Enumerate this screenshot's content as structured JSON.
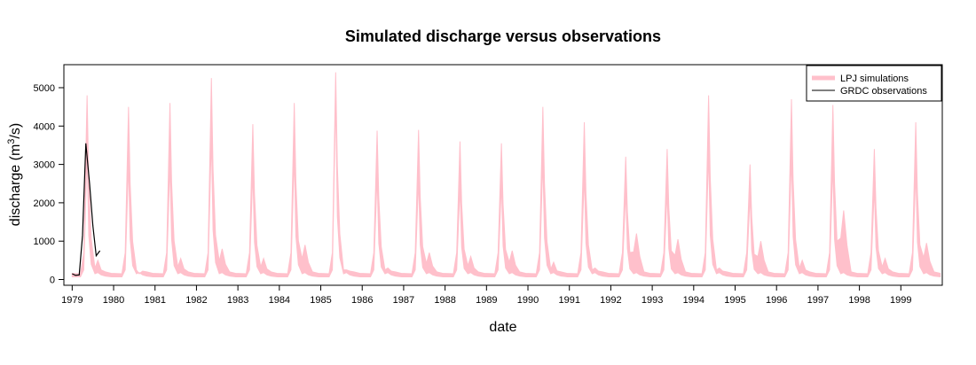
{
  "chart_data": {
    "type": "area",
    "title": "Simulated discharge versus observations",
    "xlabel": "date",
    "ylabel_prefix": "discharge (m",
    "ylabel_sup": "3",
    "ylabel_suffix": "/s)",
    "xlim": [
      1978.8,
      2000.0
    ],
    "ylim": [
      -150,
      5600
    ],
    "x_ticks": [
      1979,
      1980,
      1981,
      1982,
      1983,
      1984,
      1985,
      1986,
      1987,
      1988,
      1989,
      1990,
      1991,
      1992,
      1993,
      1994,
      1995,
      1996,
      1997,
      1998,
      1999
    ],
    "y_ticks": [
      0,
      1000,
      2000,
      3000,
      4000,
      5000
    ],
    "legend": {
      "position": "top-right",
      "entries": [
        {
          "label": "LPJ simulations",
          "color": "#FFC0CB",
          "style": "thick-line"
        },
        {
          "label": "GRDC observations",
          "color": "#000000",
          "style": "line"
        }
      ]
    },
    "series": [
      {
        "name": "LPJ simulations",
        "kind": "band",
        "color": "#FFC0CB",
        "annual_peaks": [
          {
            "year": 1979,
            "peak_upper": 4800,
            "peak_lower": 3300,
            "secondary": 500
          },
          {
            "year": 1980,
            "peak_upper": 4500,
            "peak_lower": 3000,
            "secondary": 150
          },
          {
            "year": 1981,
            "peak_upper": 4600,
            "peak_lower": 3000,
            "secondary": 550
          },
          {
            "year": 1982,
            "peak_upper": 5250,
            "peak_lower": 3700,
            "secondary": 800
          },
          {
            "year": 1983,
            "peak_upper": 4050,
            "peak_lower": 2800,
            "secondary": 550
          },
          {
            "year": 1984,
            "peak_upper": 4600,
            "peak_lower": 3200,
            "secondary": 900
          },
          {
            "year": 1985,
            "peak_upper": 5400,
            "peak_lower": 4700,
            "secondary": 250
          },
          {
            "year": 1986,
            "peak_upper": 3880,
            "peak_lower": 2700,
            "secondary": 300
          },
          {
            "year": 1987,
            "peak_upper": 3900,
            "peak_lower": 2600,
            "secondary": 700
          },
          {
            "year": 1988,
            "peak_upper": 3600,
            "peak_lower": 2400,
            "secondary": 600
          },
          {
            "year": 1989,
            "peak_upper": 3550,
            "peak_lower": 2500,
            "secondary": 750
          },
          {
            "year": 1990,
            "peak_upper": 4500,
            "peak_lower": 3100,
            "secondary": 450
          },
          {
            "year": 1991,
            "peak_upper": 4100,
            "peak_lower": 2700,
            "secondary": 300
          },
          {
            "year": 1992,
            "peak_upper": 3200,
            "peak_lower": 2300,
            "secondary": 1200
          },
          {
            "year": 1993,
            "peak_upper": 3400,
            "peak_lower": 2300,
            "secondary": 1050
          },
          {
            "year": 1994,
            "peak_upper": 4800,
            "peak_lower": 3300,
            "secondary": 300
          },
          {
            "year": 1995,
            "peak_upper": 3000,
            "peak_lower": 2200,
            "secondary": 1000
          },
          {
            "year": 1996,
            "peak_upper": 4700,
            "peak_lower": 3200,
            "secondary": 500
          },
          {
            "year": 1997,
            "peak_upper": 4550,
            "peak_lower": 3000,
            "secondary": 1800
          },
          {
            "year": 1998,
            "peak_upper": 3400,
            "peak_lower": 2400,
            "secondary": 550
          },
          {
            "year": 1999,
            "peak_upper": 4100,
            "peak_lower": 2800,
            "secondary": 950
          }
        ]
      },
      {
        "name": "GRDC observations",
        "kind": "line",
        "color": "#000000",
        "points": [
          {
            "x": 1979.0,
            "y": 150
          },
          {
            "x": 1979.08,
            "y": 110
          },
          {
            "x": 1979.17,
            "y": 120
          },
          {
            "x": 1979.25,
            "y": 1150
          },
          {
            "x": 1979.33,
            "y": 3550
          },
          {
            "x": 1979.42,
            "y": 2500
          },
          {
            "x": 1979.5,
            "y": 1400
          },
          {
            "x": 1979.58,
            "y": 620
          },
          {
            "x": 1979.67,
            "y": 750
          }
        ]
      }
    ]
  }
}
